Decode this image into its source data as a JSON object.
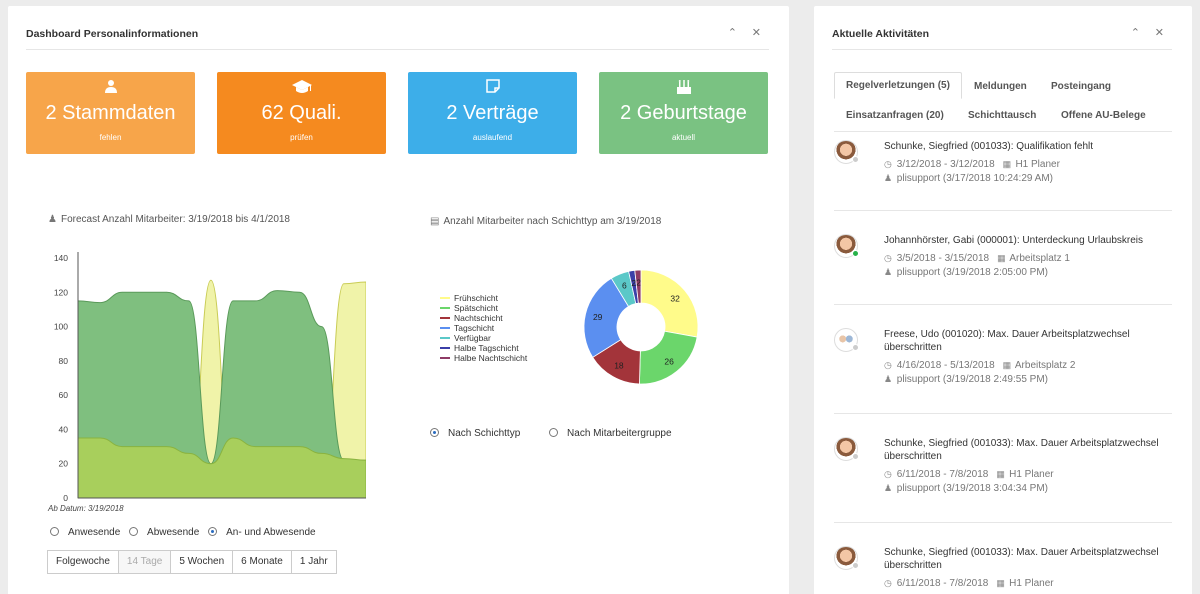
{
  "left_panel": {
    "title": "Dashboard Personalinformationen",
    "tiles": [
      {
        "value": "2 Stammdaten",
        "sub": "fehlen",
        "icon": "user-icon",
        "color": "#f7a54a"
      },
      {
        "value": "62 Quali.",
        "sub": "prüfen",
        "icon": "graduation-cap-icon",
        "color": "#f58a1f"
      },
      {
        "value": "2 Verträge",
        "sub": "auslaufend",
        "icon": "document-icon",
        "color": "#3daee9"
      },
      {
        "value": "2 Geburtstage",
        "sub": "aktuell",
        "icon": "cake-icon",
        "color": "#7ac282"
      }
    ],
    "forecast": {
      "title": "Forecast Anzahl Mitarbeiter: 3/19/2018 bis 4/1/2018",
      "ab_datum": "Ab Datum: 3/19/2018",
      "radios": [
        {
          "label": "Anwesende",
          "checked": false
        },
        {
          "label": "Abwesende",
          "checked": false
        },
        {
          "label": "An- und Abwesende",
          "checked": true
        }
      ],
      "buttons": [
        {
          "label": "Folgewoche",
          "disabled": false
        },
        {
          "label": "14 Tage",
          "disabled": true
        },
        {
          "label": "5 Wochen",
          "disabled": false
        },
        {
          "label": "6 Monate",
          "disabled": false
        },
        {
          "label": "1 Jahr",
          "disabled": false
        }
      ]
    },
    "shift": {
      "title": "Anzahl Mitarbeiter nach Schichttyp am 3/19/2018",
      "radios": [
        {
          "label": "Nach Schichttyp",
          "checked": true
        },
        {
          "label": "Nach Mitarbeitergruppe",
          "checked": false
        }
      ]
    }
  },
  "chart_data": [
    {
      "type": "area",
      "title": "Forecast Anzahl Mitarbeiter: 3/19/2018 bis 4/1/2018",
      "ylim": [
        0,
        140
      ],
      "yticks": [
        "0",
        "20",
        "40",
        "60",
        "80",
        "100",
        "120",
        "140"
      ],
      "grid": false,
      "x": [
        0,
        1,
        2,
        3,
        4,
        5,
        6,
        7,
        8,
        9,
        10,
        11,
        12,
        13
      ],
      "series": [
        {
          "values": [
            35,
            35,
            30,
            30,
            30,
            26,
            20,
            35,
            30,
            30,
            30,
            26,
            23,
            22
          ],
          "color": "#a8cf5c"
        },
        {
          "values": [
            115,
            114,
            120,
            120,
            120,
            115,
            20,
            115,
            115,
            121,
            120,
            100,
            22,
            22
          ],
          "color": "#7fbf7f"
        },
        {
          "values": [
            0,
            0,
            0,
            0,
            0,
            0,
            127,
            0,
            0,
            0,
            0,
            0,
            125,
            126
          ],
          "color": "#f0f3a9"
        }
      ]
    },
    {
      "type": "pie",
      "title": "Anzahl Mitarbeiter nach Schichttyp am 3/19/2018",
      "legend_position": "left",
      "slices": [
        {
          "label": "Frühschicht",
          "value": 32,
          "color": "#fffb8a"
        },
        {
          "label": "Spätschicht",
          "value": 26,
          "color": "#6bd66b"
        },
        {
          "label": "Nachtschicht",
          "value": 18,
          "color": "#a3343a"
        },
        {
          "label": "Tagschicht",
          "value": 29,
          "color": "#5b8ff0"
        },
        {
          "label": "Verfügbar",
          "value": 6,
          "color": "#5bc8c8"
        },
        {
          "label": "Halbe Tagschicht",
          "value": 2,
          "color": "#3b3fa8"
        },
        {
          "label": "Halbe Nachtschicht",
          "value": 2,
          "color": "#8e3b66"
        }
      ]
    }
  ],
  "right_panel": {
    "title": "Aktuelle Aktivitäten",
    "tabs": [
      {
        "label": "Regelverletzungen (5)",
        "active": true
      },
      {
        "label": "Meldungen",
        "active": false
      },
      {
        "label": "Posteingang",
        "active": false
      },
      {
        "label": "Einsatzanfragen (20)",
        "active": false
      },
      {
        "label": "Schichttausch",
        "active": false
      },
      {
        "label": "Offene AU-Belege",
        "active": false
      }
    ],
    "activities": [
      {
        "title": "Schunke, Siegfried (001033): Qualifikation fehlt",
        "dates": "3/12/2018 - 3/12/2018",
        "place": "H1 Planer",
        "user": "plisupport (3/17/2018 10:24:29 AM)",
        "avatar": "avatar",
        "online": false
      },
      {
        "title": "Johannhörster, Gabi (000001): Unterdeckung Urlaubskreis",
        "dates": "3/5/2018 - 3/15/2018",
        "place": "Arbeitsplatz 1",
        "user": "plisupport (3/19/2018 2:05:00 PM)",
        "avatar": "avatar",
        "online": true
      },
      {
        "title": "Freese, Udo (001020): Max. Dauer Arbeitsplatzwechsel überschritten",
        "dates": "4/16/2018 - 5/13/2018",
        "place": "Arbeitsplatz 2",
        "user": "plisupport (3/19/2018 2:49:55 PM)",
        "avatar": "avatar-group",
        "online": false
      },
      {
        "title": "Schunke, Siegfried (001033): Max. Dauer Arbeitsplatzwechsel überschritten",
        "dates": "6/11/2018 - 7/8/2018",
        "place": "H1 Planer",
        "user": "plisupport (3/19/2018 3:04:34 PM)",
        "avatar": "avatar",
        "online": false
      },
      {
        "title": "Schunke, Siegfried (001033): Max. Dauer Arbeitsplatzwechsel überschritten",
        "dates": "6/11/2018 - 7/8/2018",
        "place": "H1 Planer",
        "user": "",
        "avatar": "avatar",
        "online": false
      }
    ]
  }
}
